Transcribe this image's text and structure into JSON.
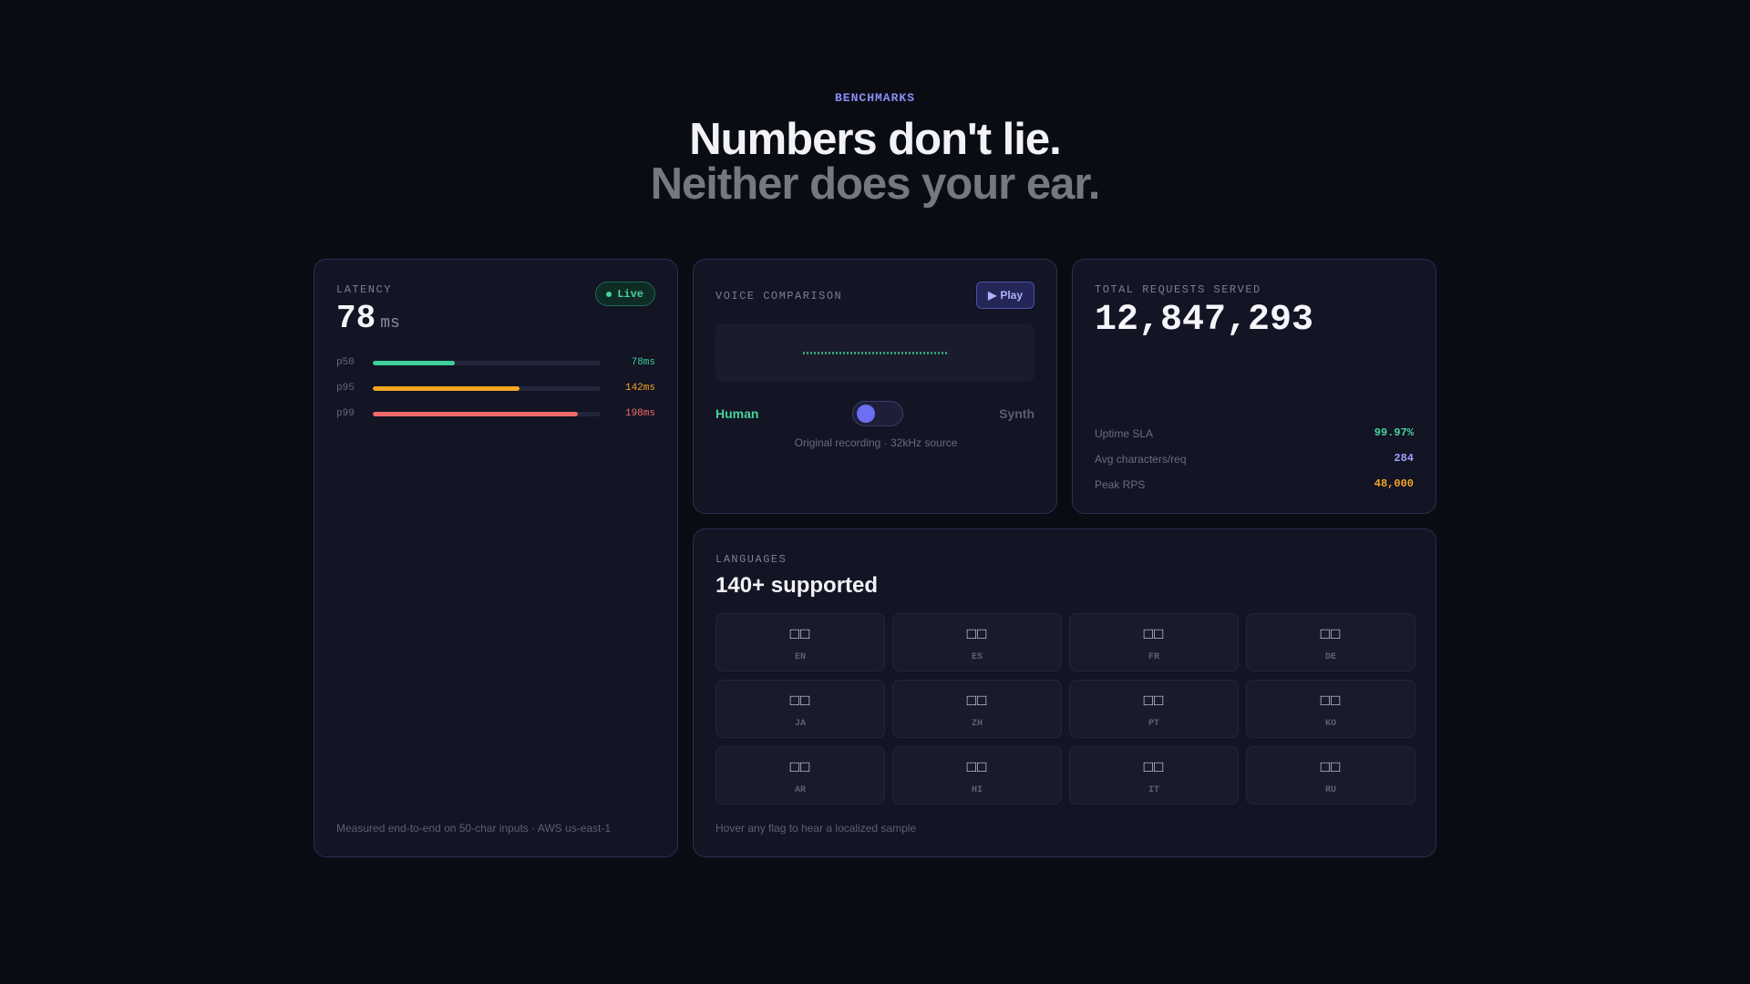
{
  "hero": {
    "eyebrow": "BENCHMARKS",
    "headline": "Numbers don't lie.",
    "subline": "Neither does your ear."
  },
  "latency": {
    "label": "LATENCY",
    "badge": "Live",
    "value": "78",
    "unit": "ms",
    "percentiles": [
      {
        "label": "p50",
        "value_text": "78ms",
        "fraction": 0.36,
        "color": "#3ecf9a"
      },
      {
        "label": "p95",
        "value_text": "142ms",
        "fraction": 0.645,
        "color": "#f5a623"
      },
      {
        "label": "p99",
        "value_text": "198ms",
        "fraction": 0.9,
        "color": "#f06a6a"
      }
    ],
    "footnote": "Measured end-to-end on 50-char inputs · AWS us-east-1"
  },
  "voice": {
    "label": "VOICE COMPARISON",
    "play_label": "Play",
    "play_icon": "play-icon",
    "left_label": "Human",
    "right_label": "Synth",
    "caption": "Original recording · 32kHz source"
  },
  "requests": {
    "label": "TOTAL REQUESTS SERVED",
    "total": "12,847,293",
    "stats": [
      {
        "label": "Uptime SLA",
        "value": "99.97%",
        "color": "#46d39a"
      },
      {
        "label": "Avg characters/req",
        "value": "284",
        "color": "#9da0ff"
      },
      {
        "label": "Peak RPS",
        "value": "48,000",
        "color": "#f5a623"
      }
    ]
  },
  "languages": {
    "label": "LANGUAGES",
    "title": "140+ supported",
    "items": [
      {
        "flag": "□□",
        "code": "EN"
      },
      {
        "flag": "□□",
        "code": "ES"
      },
      {
        "flag": "□□",
        "code": "FR"
      },
      {
        "flag": "□□",
        "code": "DE"
      },
      {
        "flag": "□□",
        "code": "JA"
      },
      {
        "flag": "□□",
        "code": "ZH"
      },
      {
        "flag": "□□",
        "code": "PT"
      },
      {
        "flag": "□□",
        "code": "KO"
      },
      {
        "flag": "□□",
        "code": "AR"
      },
      {
        "flag": "□□",
        "code": "HI"
      },
      {
        "flag": "□□",
        "code": "IT"
      },
      {
        "flag": "□□",
        "code": "RU"
      }
    ],
    "footnote": "Hover any flag to hear a localized sample"
  }
}
